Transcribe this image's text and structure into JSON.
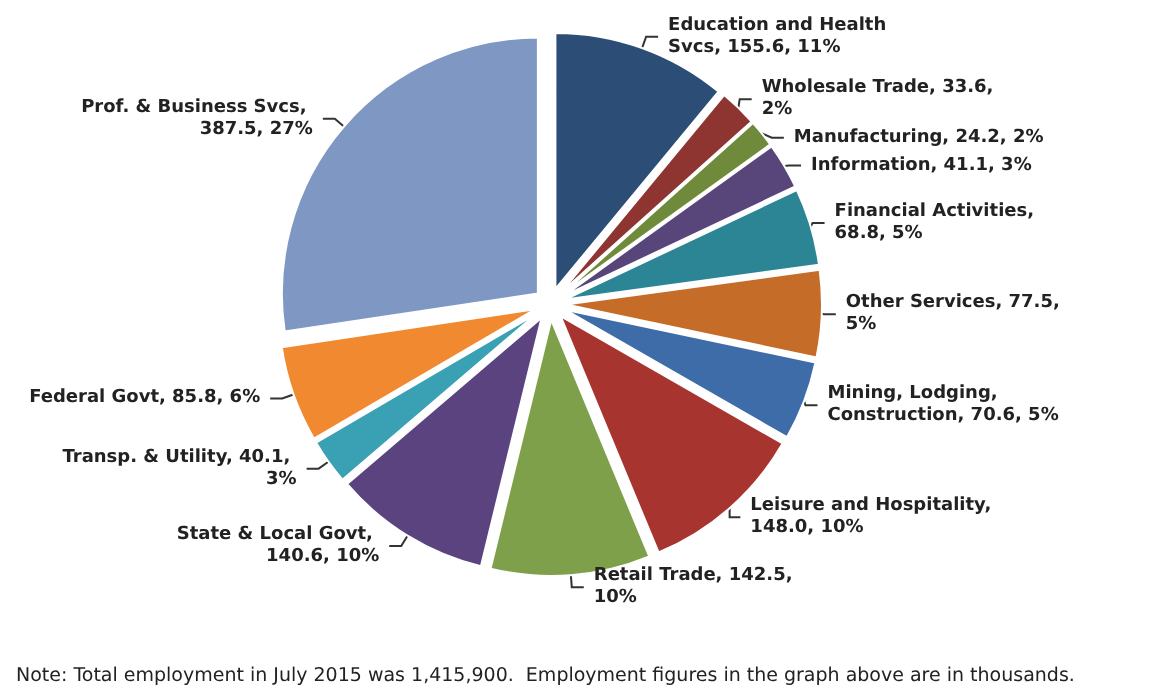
{
  "chart_data": {
    "type": "pie",
    "categories": [
      "Education and Health Svcs",
      "Wholesale Trade",
      "Manufacturing",
      "Information",
      "Financial Activities",
      "Other Services",
      "Mining, Lodging, Construction",
      "Leisure and Hospitality",
      "Retail Trade",
      "State & Local Govt",
      "Transp. & Utility",
      "Federal Govt",
      "Prof. & Business Svcs"
    ],
    "values": [
      155.6,
      33.6,
      24.2,
      41.1,
      68.8,
      77.5,
      70.6,
      148.0,
      142.5,
      140.6,
      40.1,
      85.8,
      387.5
    ],
    "value_labels": [
      ", 155.6, 11%",
      ", 33.6, 2%",
      ", 24.2, 2%",
      ", 41.1, 3%",
      ", 68.8, 5%",
      ", 77.5, 5%",
      ", 70.6, 5%",
      ", 148.0, 10%",
      ", 142.5, 10%",
      ", 140.6, 10%",
      ", 40.1, 3%",
      ", 85.8, 6%",
      ", 387.5, 27%"
    ],
    "colors": [
      "#2c4d75",
      "#8e3532",
      "#6f8a3a",
      "#58467a",
      "#2b8595",
      "#c56d28",
      "#3d6ca8",
      "#a83430",
      "#7fa04a",
      "#5b4380",
      "#3aa0b4",
      "#f0892f",
      "#7f97c3"
    ],
    "legend": false,
    "annotations": [
      "Note: Total employment in July 2015 was 1,415,900.  Employment figures in the graph above are in thousands."
    ]
  }
}
